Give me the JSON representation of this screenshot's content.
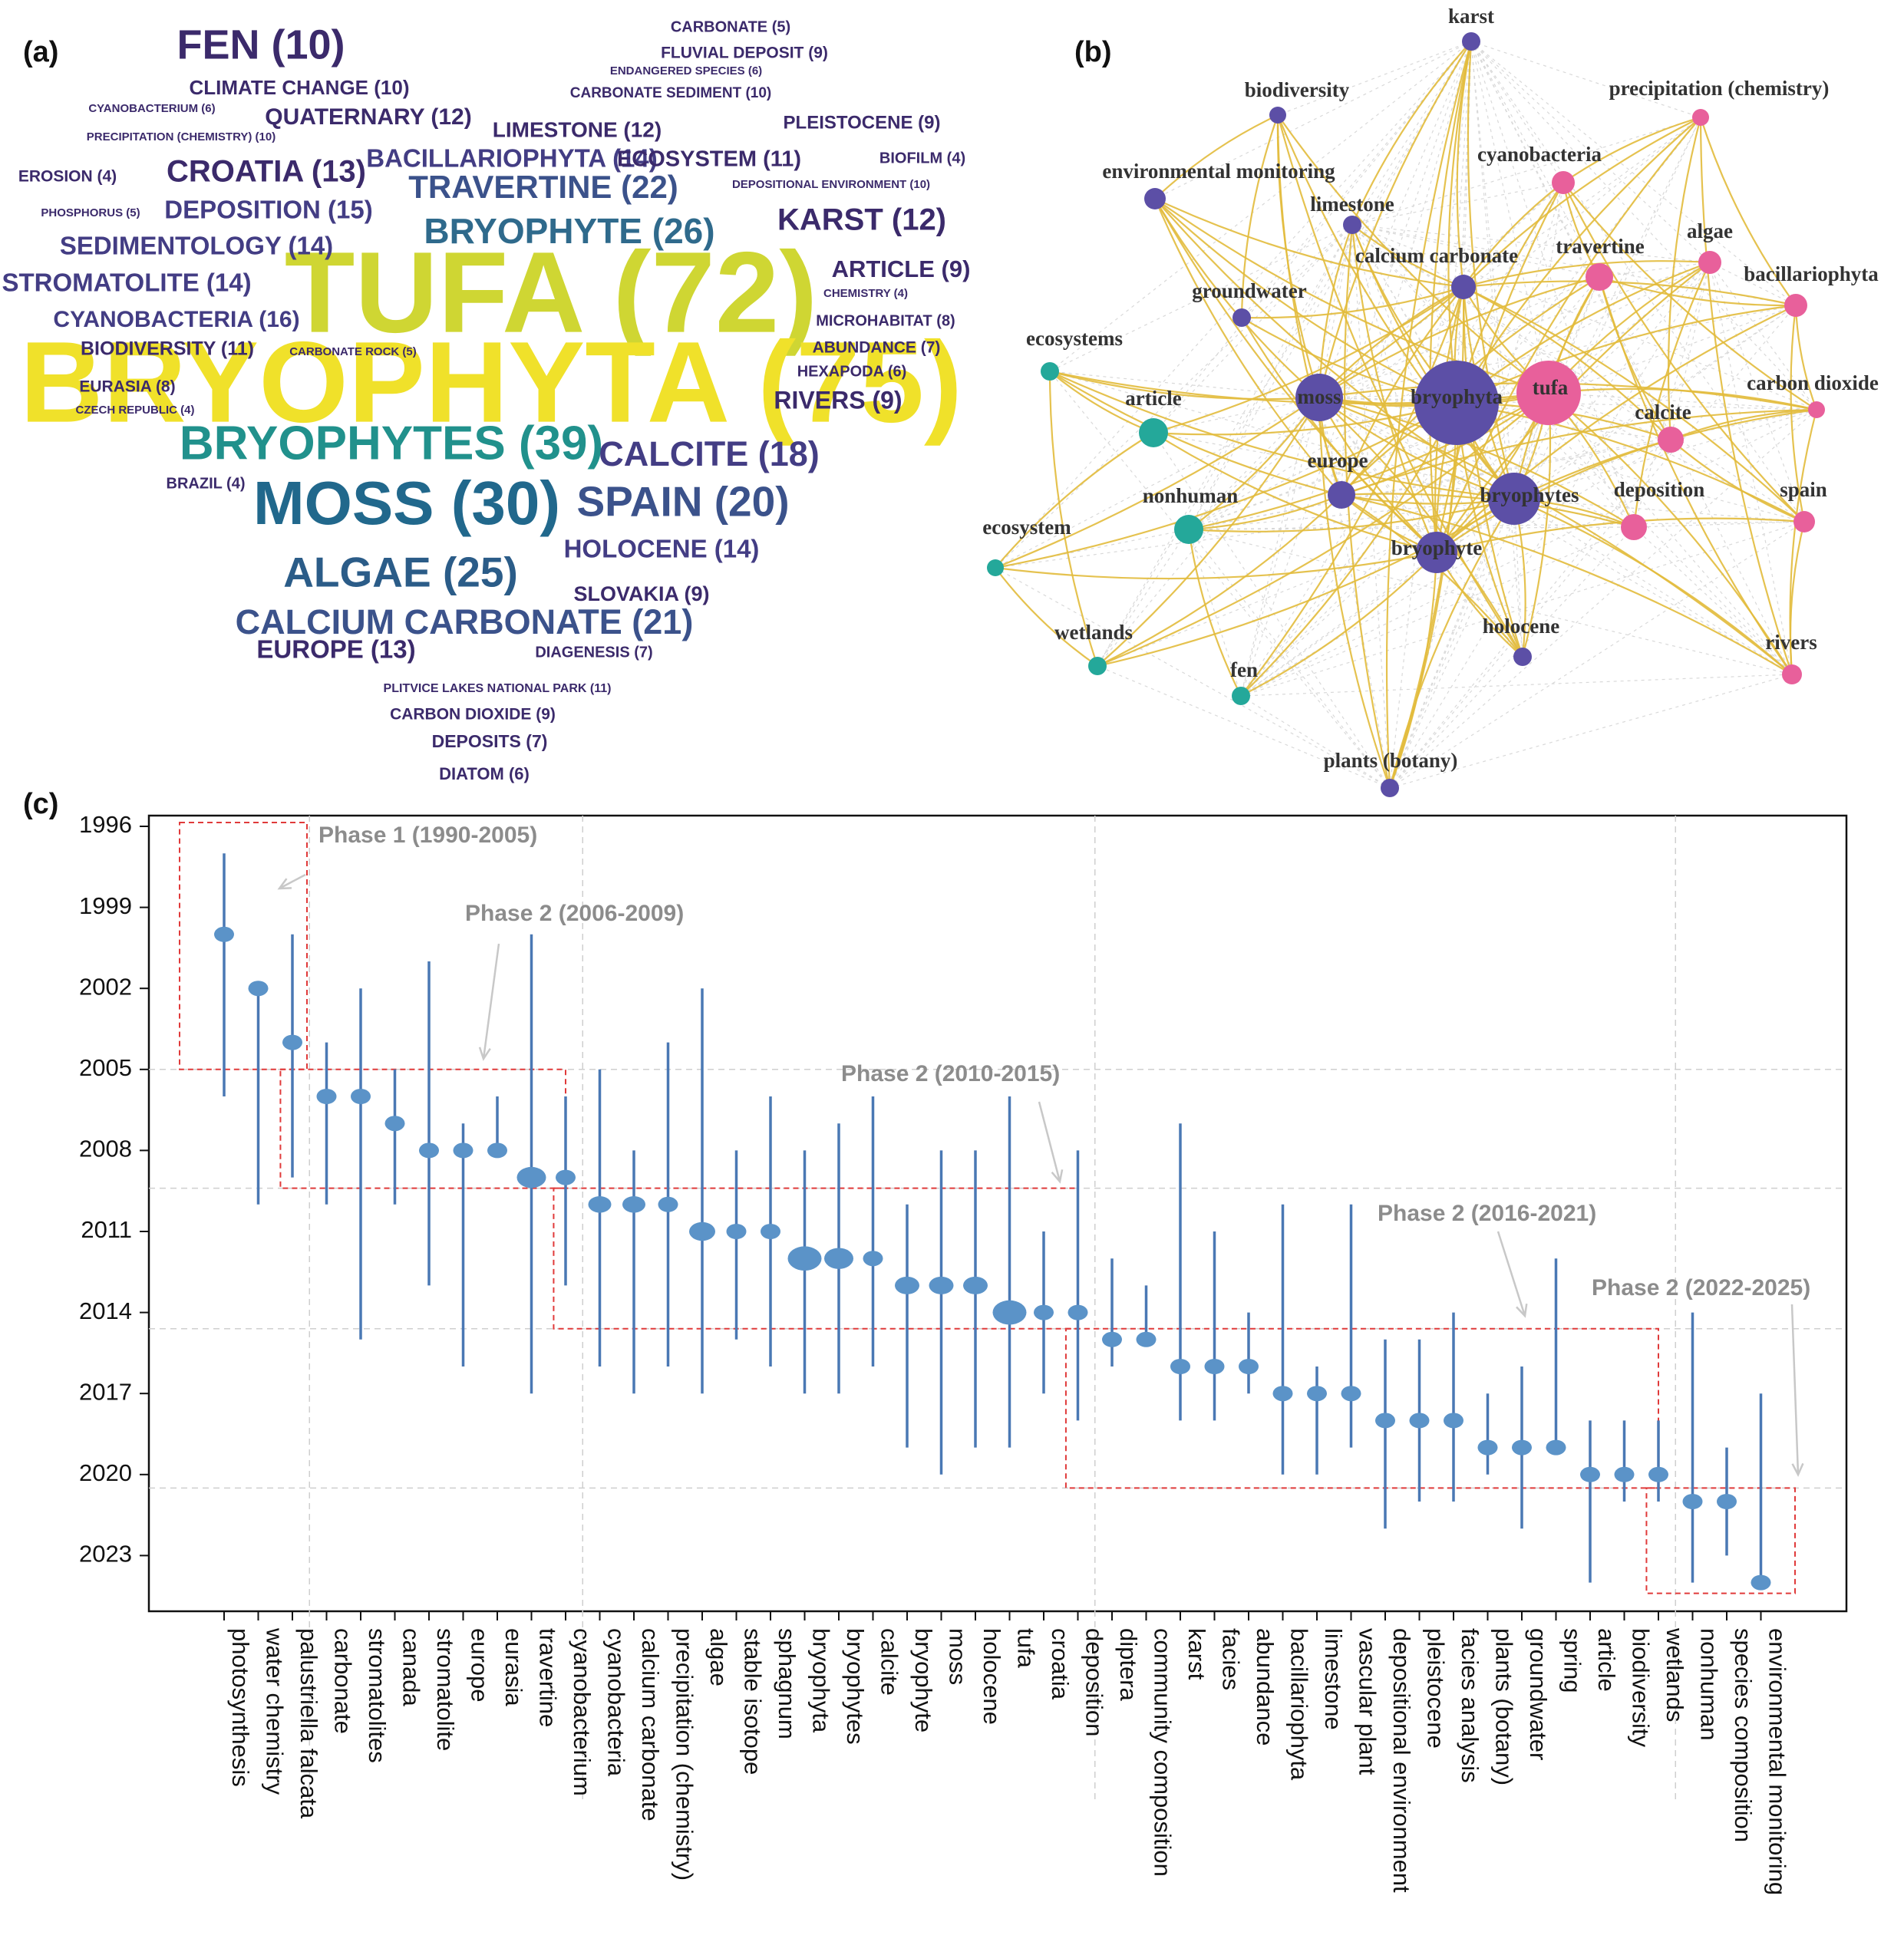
{
  "panels": {
    "a": "(a)",
    "b": "(b)",
    "c": "(c)"
  },
  "colors": {
    "cloud_scale": [
      "#3b2a6b",
      "#433d84",
      "#3b528b",
      "#2c728e",
      "#21918c",
      "#28ae80",
      "#bcd92b",
      "#ece024"
    ],
    "network_purple": "#5c4fa6",
    "network_teal": "#24a89a",
    "network_pink": "#e8609b",
    "edge": "#e2bb3c",
    "dot": "#5b93c8",
    "bar": "#4a78b4",
    "phase_box": "#e03a3a",
    "phase_text": "#8c8c8c"
  },
  "chart_data": [
    {
      "type": "wordcloud",
      "panel": "(a)",
      "words": [
        {
          "text": "TUFA (72)",
          "count": 72
        },
        {
          "text": "BRYOPHYTA (75)",
          "count": 75
        },
        {
          "text": "BRYOPHYTES (39)",
          "count": 39
        },
        {
          "text": "MOSS (30)",
          "count": 30
        },
        {
          "text": "BRYOPHYTE (26)",
          "count": 26
        },
        {
          "text": "ALGAE (25)",
          "count": 25
        },
        {
          "text": "TRAVERTINE (22)",
          "count": 22
        },
        {
          "text": "CALCIUM CARBONATE (21)",
          "count": 21
        },
        {
          "text": "SPAIN (20)",
          "count": 20
        },
        {
          "text": "CALCITE (18)",
          "count": 18
        },
        {
          "text": "CYANOBACTERIA (16)",
          "count": 16
        },
        {
          "text": "DEPOSITION (15)",
          "count": 15
        },
        {
          "text": "SEDIMENTOLOGY (14)",
          "count": 14
        },
        {
          "text": "STROMATOLITE (14)",
          "count": 14
        },
        {
          "text": "BACILLARIOPHYTA (14)",
          "count": 14
        },
        {
          "text": "HOLOCENE (14)",
          "count": 14
        },
        {
          "text": "CROATIA (13)",
          "count": 13
        },
        {
          "text": "EUROPE (13)",
          "count": 13
        },
        {
          "text": "QUATERNARY (12)",
          "count": 12
        },
        {
          "text": "LIMESTONE (12)",
          "count": 12
        },
        {
          "text": "KARST (12)",
          "count": 12
        },
        {
          "text": "ECOSYSTEM (11)",
          "count": 11
        },
        {
          "text": "BIODIVERSITY (11)",
          "count": 11
        },
        {
          "text": "PLITVICE LAKES NATIONAL PARK (11)",
          "count": 11
        },
        {
          "text": "FEN (10)",
          "count": 10
        },
        {
          "text": "CLIMATE CHANGE (10)",
          "count": 10
        },
        {
          "text": "CARBONATE SEDIMENT (10)",
          "count": 10
        },
        {
          "text": "PRECIPITATION (CHEMISTRY) (10)",
          "count": 10
        },
        {
          "text": "DEPOSITIONAL ENVIRONMENT (10)",
          "count": 10
        },
        {
          "text": "FLUVIAL DEPOSIT (9)",
          "count": 9
        },
        {
          "text": "PLEISTOCENE (9)",
          "count": 9
        },
        {
          "text": "ARTICLE (9)",
          "count": 9
        },
        {
          "text": "RIVERS (9)",
          "count": 9
        },
        {
          "text": "SLOVAKIA (9)",
          "count": 9
        },
        {
          "text": "CARBON DIOXIDE (9)",
          "count": 9
        },
        {
          "text": "EURASIA (8)",
          "count": 8
        },
        {
          "text": "MICROHABITAT (8)",
          "count": 8
        },
        {
          "text": "ABUNDANCE (7)",
          "count": 7
        },
        {
          "text": "DIAGENESIS (7)",
          "count": 7
        },
        {
          "text": "DEPOSITS (7)",
          "count": 7
        },
        {
          "text": "CYANOBACTERIUM (6)",
          "count": 6
        },
        {
          "text": "ENDANGERED SPECIES (6)",
          "count": 6
        },
        {
          "text": "HEXAPODA (6)",
          "count": 6
        },
        {
          "text": "DIATOM (6)",
          "count": 6
        },
        {
          "text": "CARBONATE (5)",
          "count": 5
        },
        {
          "text": "PHOSPHORUS (5)",
          "count": 5
        },
        {
          "text": "CARBONATE ROCK (5)",
          "count": 5
        },
        {
          "text": "EROSION (4)",
          "count": 4
        },
        {
          "text": "BIOFILM (4)",
          "count": 4
        },
        {
          "text": "CHEMISTRY (4)",
          "count": 4
        },
        {
          "text": "CZECH REPUBLIC (4)",
          "count": 4
        },
        {
          "text": "BRAZIL (4)",
          "count": 4
        }
      ]
    },
    {
      "type": "network",
      "panel": "(b)",
      "nodes": [
        {
          "id": "karst",
          "cluster": "purple"
        },
        {
          "id": "biodiversity",
          "cluster": "purple"
        },
        {
          "id": "environmental monitoring",
          "cluster": "purple"
        },
        {
          "id": "limestone",
          "cluster": "purple"
        },
        {
          "id": "calcium carbonate",
          "cluster": "purple"
        },
        {
          "id": "groundwater",
          "cluster": "purple"
        },
        {
          "id": "moss",
          "cluster": "purple"
        },
        {
          "id": "bryophyta",
          "cluster": "purple"
        },
        {
          "id": "europe",
          "cluster": "purple"
        },
        {
          "id": "bryophytes",
          "cluster": "purple"
        },
        {
          "id": "bryophyte",
          "cluster": "purple"
        },
        {
          "id": "holocene",
          "cluster": "purple"
        },
        {
          "id": "plants (botany)",
          "cluster": "purple"
        },
        {
          "id": "ecosystems",
          "cluster": "teal"
        },
        {
          "id": "article",
          "cluster": "teal"
        },
        {
          "id": "nonhuman",
          "cluster": "teal"
        },
        {
          "id": "ecosystem",
          "cluster": "teal"
        },
        {
          "id": "wetlands",
          "cluster": "teal"
        },
        {
          "id": "fen",
          "cluster": "teal"
        },
        {
          "id": "precipitation (chemistry)",
          "cluster": "pink"
        },
        {
          "id": "cyanobacteria",
          "cluster": "pink"
        },
        {
          "id": "algae",
          "cluster": "pink"
        },
        {
          "id": "travertine",
          "cluster": "pink"
        },
        {
          "id": "bacillariophyta",
          "cluster": "pink"
        },
        {
          "id": "tufa",
          "cluster": "pink"
        },
        {
          "id": "carbon dioxide",
          "cluster": "pink"
        },
        {
          "id": "calcite",
          "cluster": "pink"
        },
        {
          "id": "deposition",
          "cluster": "pink"
        },
        {
          "id": "spain",
          "cluster": "pink"
        },
        {
          "id": "rivers",
          "cluster": "pink"
        }
      ]
    },
    {
      "type": "range",
      "panel": "(c)",
      "ylim": [
        1996,
        2026
      ],
      "y_reversed": true,
      "yticks": [
        1996,
        1999,
        2002,
        2005,
        2008,
        2011,
        2014,
        2017,
        2020,
        2023
      ],
      "items": [
        {
          "term": "photosynthesis",
          "start": 1997,
          "peak": 2000,
          "end": 2006
        },
        {
          "term": "water chemistry",
          "start": 2002,
          "peak": 2002,
          "end": 2010
        },
        {
          "term": "palustriella falcata",
          "start": 2000,
          "peak": 2004,
          "end": 2009
        },
        {
          "term": "carbonate",
          "start": 2004,
          "peak": 2006,
          "end": 2010
        },
        {
          "term": "stromatolites",
          "start": 2002,
          "peak": 2006,
          "end": 2015
        },
        {
          "term": "canada",
          "start": 2005,
          "peak": 2007,
          "end": 2010
        },
        {
          "term": "stromatolite",
          "start": 2001,
          "peak": 2008,
          "end": 2013
        },
        {
          "term": "europe",
          "start": 2007,
          "peak": 2008,
          "end": 2016
        },
        {
          "term": "eurasia",
          "start": 2006,
          "peak": 2008,
          "end": 2008
        },
        {
          "term": "travertine",
          "start": 2000,
          "peak": 2009,
          "end": 2017
        },
        {
          "term": "cyanobacterium",
          "start": 2006,
          "peak": 2009,
          "end": 2013
        },
        {
          "term": "cyanobacteria",
          "start": 2005,
          "peak": 2010,
          "end": 2016
        },
        {
          "term": "calcium carbonate",
          "start": 2008,
          "peak": 2010,
          "end": 2017
        },
        {
          "term": "precipitation (chemistry)",
          "start": 2004,
          "peak": 2010,
          "end": 2016
        },
        {
          "term": "algae",
          "start": 2002,
          "peak": 2011,
          "end": 2017
        },
        {
          "term": "stable isotope",
          "start": 2008,
          "peak": 2011,
          "end": 2015
        },
        {
          "term": "sphagnum",
          "start": 2006,
          "peak": 2011,
          "end": 2016
        },
        {
          "term": "bryophyta",
          "start": 2008,
          "peak": 2012,
          "end": 2017
        },
        {
          "term": "bryophytes",
          "start": 2007,
          "peak": 2012,
          "end": 2017
        },
        {
          "term": "calcite",
          "start": 2006,
          "peak": 2012,
          "end": 2016
        },
        {
          "term": "bryophyte",
          "start": 2010,
          "peak": 2013,
          "end": 2019
        },
        {
          "term": "moss",
          "start": 2008,
          "peak": 2013,
          "end": 2020
        },
        {
          "term": "holocene",
          "start": 2008,
          "peak": 2013,
          "end": 2019
        },
        {
          "term": "tufa",
          "start": 2006,
          "peak": 2014,
          "end": 2019
        },
        {
          "term": "croatia",
          "start": 2011,
          "peak": 2014,
          "end": 2017
        },
        {
          "term": "deposition",
          "start": 2008,
          "peak": 2014,
          "end": 2018
        },
        {
          "term": "diptera",
          "start": 2012,
          "peak": 2015,
          "end": 2016
        },
        {
          "term": "community composition",
          "start": 2013,
          "peak": 2015,
          "end": 2015
        },
        {
          "term": "karst",
          "start": 2007,
          "peak": 2016,
          "end": 2018
        },
        {
          "term": "facies",
          "start": 2011,
          "peak": 2016,
          "end": 2018
        },
        {
          "term": "abundance",
          "start": 2014,
          "peak": 2016,
          "end": 2017
        },
        {
          "term": "bacillariophyta",
          "start": 2010,
          "peak": 2017,
          "end": 2020
        },
        {
          "term": "limestone",
          "start": 2016,
          "peak": 2017,
          "end": 2020
        },
        {
          "term": "vascular plant",
          "start": 2010,
          "peak": 2017,
          "end": 2019
        },
        {
          "term": "depositional environment",
          "start": 2015,
          "peak": 2018,
          "end": 2022
        },
        {
          "term": "pleistocene",
          "start": 2015,
          "peak": 2018,
          "end": 2021
        },
        {
          "term": "facies analysis",
          "start": 2014,
          "peak": 2018,
          "end": 2021
        },
        {
          "term": "plants (botany)",
          "start": 2017,
          "peak": 2019,
          "end": 2020
        },
        {
          "term": "groundwater",
          "start": 2016,
          "peak": 2019,
          "end": 2022
        },
        {
          "term": "spring",
          "start": 2012,
          "peak": 2019,
          "end": 2019
        },
        {
          "term": "article",
          "start": 2018,
          "peak": 2020,
          "end": 2024
        },
        {
          "term": "biodiversity",
          "start": 2018,
          "peak": 2020,
          "end": 2021
        },
        {
          "term": "wetlands",
          "start": 2018,
          "peak": 2020,
          "end": 2021
        },
        {
          "term": "nonhuman",
          "start": 2014,
          "peak": 2021,
          "end": 2024
        },
        {
          "term": "species composition",
          "start": 2019,
          "peak": 2021,
          "end": 2023
        },
        {
          "term": "environmental monitoring",
          "start": 2017,
          "peak": 2024,
          "end": 2024
        }
      ],
      "phases": [
        {
          "label": "Phase 1 (1990-2005)",
          "from": 1996,
          "to": 2005
        },
        {
          "label": "Phase 2 (2006-2009)",
          "from": 2005,
          "to": 2009
        },
        {
          "label": "Phase 2 (2010-2015)",
          "from": 2009,
          "to": 2015
        },
        {
          "label": "Phase 2 (2016-2021)",
          "from": 2015,
          "to": 2020
        },
        {
          "label": "Phase 2 (2022-2025)",
          "from": 2020,
          "to": 2025
        }
      ]
    }
  ]
}
